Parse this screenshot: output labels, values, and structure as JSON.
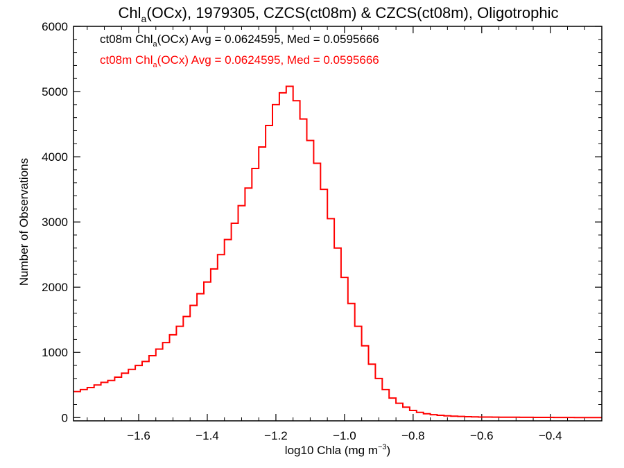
{
  "chart_data": {
    "type": "line",
    "title_parts": [
      "Chl",
      "a",
      "(OCx), 1979305, CZCS(ct08m) & CZCS(ct08m), Oligotrophic"
    ],
    "xlabel_parts": [
      "log10 Chla (mg m",
      "−3",
      ")"
    ],
    "ylabel": "Number of Observations",
    "xlim": [
      -1.79,
      -0.25
    ],
    "ylim": [
      -50,
      6000
    ],
    "xticks": [
      -1.6,
      -1.4,
      -1.2,
      -1.0,
      -0.8,
      -0.6,
      -0.4
    ],
    "xtick_labels": [
      "−1.6",
      "−1.4",
      "−1.2",
      "−1.0",
      "−0.8",
      "−0.6",
      "−0.4"
    ],
    "yticks": [
      0,
      1000,
      2000,
      3000,
      4000,
      5000,
      6000
    ],
    "ytick_labels": [
      "0",
      "1000",
      "2000",
      "3000",
      "4000",
      "5000",
      "6000"
    ],
    "legend_placement": "top-left",
    "legend": [
      {
        "parts": [
          "ct08m Chl",
          "a",
          "(OCx) Avg = 0.0624595, Med = 0.0595666"
        ],
        "color": "#000000"
      },
      {
        "parts": [
          "ct08m Chl",
          "a",
          "(OCx) Avg = 0.0624595, Med = 0.0595666"
        ],
        "color": "#ff0000"
      }
    ],
    "series": [
      {
        "color": "#ff0000",
        "style": "step",
        "x": [
          -1.79,
          -1.77,
          -1.75,
          -1.73,
          -1.71,
          -1.69,
          -1.67,
          -1.65,
          -1.63,
          -1.61,
          -1.59,
          -1.57,
          -1.55,
          -1.53,
          -1.51,
          -1.49,
          -1.47,
          -1.45,
          -1.43,
          -1.41,
          -1.39,
          -1.37,
          -1.35,
          -1.33,
          -1.31,
          -1.29,
          -1.27,
          -1.25,
          -1.23,
          -1.21,
          -1.19,
          -1.17,
          -1.15,
          -1.13,
          -1.11,
          -1.09,
          -1.07,
          -1.05,
          -1.03,
          -1.01,
          -0.99,
          -0.97,
          -0.95,
          -0.93,
          -0.91,
          -0.89,
          -0.87,
          -0.85,
          -0.83,
          -0.81,
          -0.79,
          -0.77,
          -0.75,
          -0.73,
          -0.71,
          -0.69,
          -0.67,
          -0.65,
          -0.63,
          -0.61,
          -0.59,
          -0.57,
          -0.55,
          -0.53,
          -0.51,
          -0.49,
          -0.47,
          -0.45,
          -0.43,
          -0.41,
          -0.39,
          -0.37,
          -0.35,
          -0.33,
          -0.31,
          -0.29,
          -0.27,
          -0.25
        ],
        "y": [
          400,
          430,
          460,
          500,
          540,
          570,
          620,
          680,
          740,
          800,
          860,
          950,
          1050,
          1150,
          1270,
          1400,
          1550,
          1720,
          1900,
          2080,
          2280,
          2500,
          2730,
          2980,
          3250,
          3520,
          3820,
          4150,
          4480,
          4800,
          4980,
          5080,
          4860,
          4580,
          4250,
          3900,
          3500,
          3050,
          2600,
          2150,
          1750,
          1400,
          1100,
          820,
          600,
          430,
          300,
          220,
          160,
          110,
          80,
          60,
          45,
          35,
          28,
          22,
          18,
          14,
          11,
          9,
          8,
          7,
          6,
          5,
          5,
          4,
          4,
          3,
          3,
          3,
          2,
          2,
          2,
          1,
          1,
          1,
          1,
          1
        ]
      }
    ]
  }
}
